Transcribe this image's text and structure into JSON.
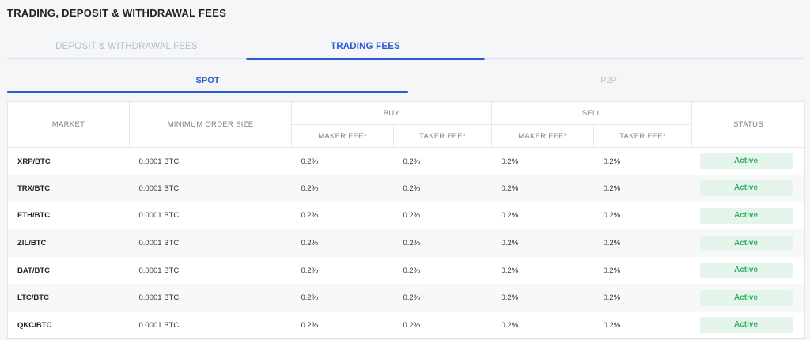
{
  "page": {
    "title": "TRADING, DEPOSIT & WITHDRAWAL FEES"
  },
  "main_tabs": [
    {
      "label": "DEPOSIT & WITHDRAWAL FEES",
      "active": false
    },
    {
      "label": "TRADING FEES",
      "active": true
    }
  ],
  "sub_tabs": [
    {
      "label": "SPOT",
      "active": true
    },
    {
      "label": "P2P",
      "active": false
    }
  ],
  "table": {
    "headers": {
      "market": "MARKET",
      "min_order": "MINIMUM ORDER SIZE",
      "buy": "BUY",
      "sell": "SELL",
      "maker_fee": "MAKER FEE*",
      "taker_fee": "TAKER FEE*",
      "status": "STATUS"
    },
    "rows": [
      {
        "market": "XRP/BTC",
        "min_order": "0.0001 BTC",
        "buy_maker": "0.2%",
        "buy_taker": "0.2%",
        "sell_maker": "0.2%",
        "sell_taker": "0.2%",
        "status": "Active"
      },
      {
        "market": "TRX/BTC",
        "min_order": "0.0001 BTC",
        "buy_maker": "0.2%",
        "buy_taker": "0.2%",
        "sell_maker": "0.2%",
        "sell_taker": "0.2%",
        "status": "Active"
      },
      {
        "market": "ETH/BTC",
        "min_order": "0.0001 BTC",
        "buy_maker": "0.2%",
        "buy_taker": "0.2%",
        "sell_maker": "0.2%",
        "sell_taker": "0.2%",
        "status": "Active"
      },
      {
        "market": "ZIL/BTC",
        "min_order": "0.0001 BTC",
        "buy_maker": "0.2%",
        "buy_taker": "0.2%",
        "sell_maker": "0.2%",
        "sell_taker": "0.2%",
        "status": "Active"
      },
      {
        "market": "BAT/BTC",
        "min_order": "0.0001 BTC",
        "buy_maker": "0.2%",
        "buy_taker": "0.2%",
        "sell_maker": "0.2%",
        "sell_taker": "0.2%",
        "status": "Active"
      },
      {
        "market": "LTC/BTC",
        "min_order": "0.0001 BTC",
        "buy_maker": "0.2%",
        "buy_taker": "0.2%",
        "sell_maker": "0.2%",
        "sell_taker": "0.2%",
        "status": "Active"
      },
      {
        "market": "QKC/BTC",
        "min_order": "0.0001 BTC",
        "buy_maker": "0.2%",
        "buy_taker": "0.2%",
        "sell_maker": "0.2%",
        "sell_taker": "0.2%",
        "status": "Active"
      }
    ]
  },
  "colors": {
    "accent": "#2f5ad6",
    "status_active_bg": "#e5f5ec",
    "status_active_text": "#2fae62"
  }
}
